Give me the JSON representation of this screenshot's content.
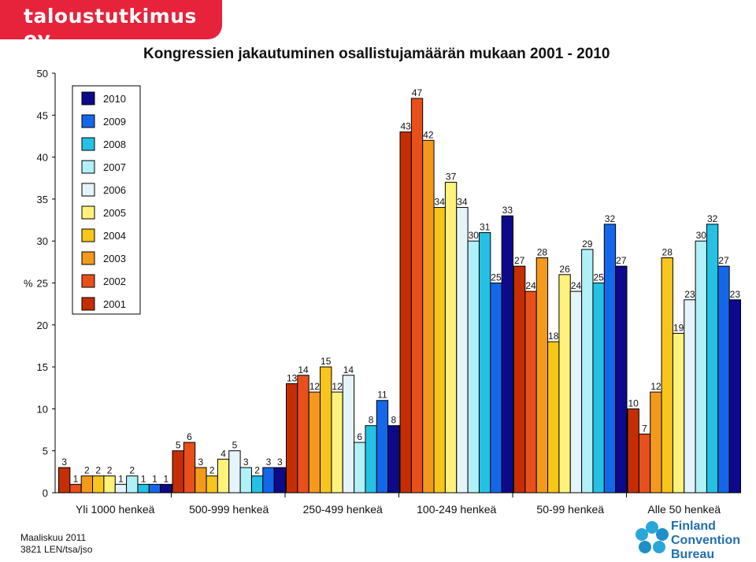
{
  "brand": {
    "name": "taloustutkimus oy"
  },
  "footer": {
    "line1": "Maaliskuu 2011",
    "line2": "3821 LEN/tsa/jso"
  },
  "logo": {
    "line1": "Finland",
    "line2": "Convention",
    "line3": "Bureau"
  },
  "colors": {
    "2001": "#c52e05",
    "2002": "#e8501b",
    "2003": "#f39a1c",
    "2004": "#f8c51c",
    "2005": "#fef27b",
    "2006": "#e5f4fb",
    "2007": "#b0f0f6",
    "2008": "#24c1e4",
    "2009": "#1567e9",
    "2010": "#0c0a8b"
  },
  "chart_data": {
    "type": "bar",
    "title": "Kongressien jakautuminen osallistujamäärän mukaan 2001 - 2010",
    "ylabel": "%",
    "ylim": [
      0,
      50
    ],
    "yticks": [
      0,
      5,
      10,
      15,
      20,
      25,
      30,
      35,
      40,
      45,
      50
    ],
    "legend_position": "top-left",
    "categories": [
      "Yli 1000 henkeä",
      "500-999 henkeä",
      "250-499 henkeä",
      "100-249 henkeä",
      "50-99 henkeä",
      "Alle 50 henkeä"
    ],
    "series": [
      {
        "name": "2001",
        "values": [
          3,
          5,
          13,
          43,
          27,
          10
        ]
      },
      {
        "name": "2002",
        "values": [
          1,
          6,
          14,
          47,
          24,
          7
        ]
      },
      {
        "name": "2003",
        "values": [
          2,
          3,
          12,
          42,
          28,
          12
        ]
      },
      {
        "name": "2004",
        "values": [
          2,
          2,
          15,
          34,
          18,
          28
        ]
      },
      {
        "name": "2005",
        "values": [
          2,
          4,
          12,
          37,
          26,
          19
        ]
      },
      {
        "name": "2006",
        "values": [
          1,
          5,
          14,
          34,
          24,
          23
        ]
      },
      {
        "name": "2007",
        "values": [
          2,
          3,
          6,
          30,
          29,
          30
        ]
      },
      {
        "name": "2008",
        "values": [
          1,
          2,
          8,
          31,
          25,
          32
        ]
      },
      {
        "name": "2009",
        "values": [
          1,
          3,
          11,
          25,
          32,
          27
        ]
      },
      {
        "name": "2010",
        "values": [
          1,
          3,
          8,
          33,
          27,
          23
        ]
      }
    ]
  }
}
